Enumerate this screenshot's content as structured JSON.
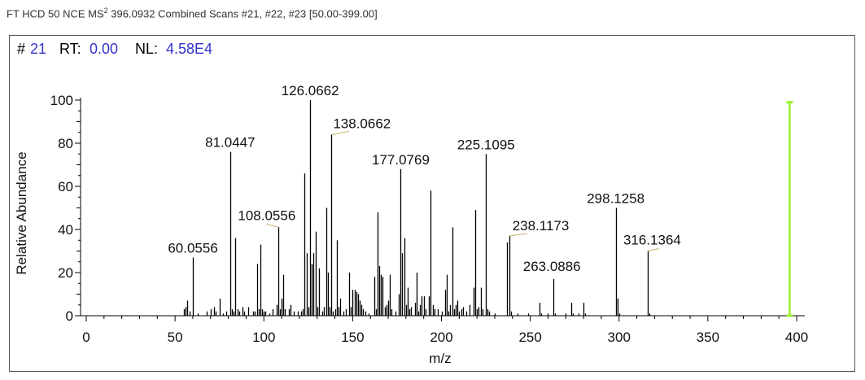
{
  "header": {
    "prefix": "FT HCD 50 NCE MS",
    "ms_order": "2",
    "suffix": " 396.0932 Combined Scans #21, #22, #23 [50.00-399.00]"
  },
  "info": {
    "scan_label": "#",
    "scan_value": "21",
    "rt_label": "RT:",
    "rt_value": "0.00",
    "nl_label": "NL:",
    "nl_value": "4.58E4"
  },
  "colors": {
    "accent_value": "#3333cc",
    "precursor_marker": "#99ee33",
    "peak": "#000000",
    "label_connector": "#c8b070"
  },
  "chart_data": {
    "type": "bar",
    "xlabel": "m/z",
    "ylabel": "Relative Abundance",
    "xlim": [
      -5,
      400
    ],
    "ylim": [
      0,
      100
    ],
    "x_ticks": [
      0,
      50,
      100,
      150,
      200,
      250,
      300,
      350,
      400
    ],
    "y_ticks": [
      0,
      20,
      40,
      60,
      80,
      100
    ],
    "precursor_marker": {
      "x": 396.0932,
      "y": 99
    },
    "peaks": [
      [
        55,
        3
      ],
      [
        56,
        4
      ],
      [
        57,
        7
      ],
      [
        58,
        2
      ],
      [
        60.0556,
        27
      ],
      [
        63,
        1
      ],
      [
        68,
        2
      ],
      [
        70,
        3
      ],
      [
        72,
        4
      ],
      [
        73,
        2
      ],
      [
        75,
        8
      ],
      [
        77,
        1
      ],
      [
        79,
        2
      ],
      [
        81.0447,
        76
      ],
      [
        82,
        3
      ],
      [
        83,
        2
      ],
      [
        84,
        36
      ],
      [
        85,
        3
      ],
      [
        86,
        2
      ],
      [
        88,
        4
      ],
      [
        89,
        2
      ],
      [
        91,
        4
      ],
      [
        94,
        2
      ],
      [
        95,
        2
      ],
      [
        96,
        24
      ],
      [
        97,
        3
      ],
      [
        98,
        33
      ],
      [
        99,
        3
      ],
      [
        100,
        2
      ],
      [
        101,
        2
      ],
      [
        103,
        1
      ],
      [
        105,
        3
      ],
      [
        107,
        5
      ],
      [
        108.0556,
        41
      ],
      [
        109,
        3
      ],
      [
        110,
        8
      ],
      [
        111,
        19
      ],
      [
        112,
        3
      ],
      [
        114,
        3
      ],
      [
        115,
        5
      ],
      [
        117,
        2
      ],
      [
        119,
        2
      ],
      [
        121,
        2
      ],
      [
        122,
        3
      ],
      [
        123,
        66
      ],
      [
        124,
        29
      ],
      [
        125,
        4
      ],
      [
        126.0662,
        100
      ],
      [
        127,
        24
      ],
      [
        128,
        29
      ],
      [
        129,
        39
      ],
      [
        130,
        4
      ],
      [
        131,
        22
      ],
      [
        133,
        2
      ],
      [
        134,
        4
      ],
      [
        135,
        50
      ],
      [
        136,
        20
      ],
      [
        137,
        4
      ],
      [
        138.0662,
        84
      ],
      [
        139,
        2
      ],
      [
        140,
        3
      ],
      [
        141,
        35
      ],
      [
        142,
        4
      ],
      [
        143,
        8
      ],
      [
        145,
        2
      ],
      [
        146,
        3
      ],
      [
        148,
        20
      ],
      [
        149,
        4
      ],
      [
        150,
        12
      ],
      [
        151,
        12
      ],
      [
        152,
        11
      ],
      [
        153,
        10
      ],
      [
        154,
        7
      ],
      [
        155,
        5
      ],
      [
        156,
        3
      ],
      [
        157,
        2
      ],
      [
        159,
        1
      ],
      [
        162,
        18
      ],
      [
        163,
        3
      ],
      [
        164,
        48
      ],
      [
        165,
        23
      ],
      [
        166,
        19
      ],
      [
        167,
        18
      ],
      [
        168,
        4
      ],
      [
        169,
        5
      ],
      [
        170,
        7
      ],
      [
        171,
        19
      ],
      [
        172,
        3
      ],
      [
        174,
        2
      ],
      [
        176,
        10
      ],
      [
        177.0769,
        68
      ],
      [
        178,
        29
      ],
      [
        179,
        36
      ],
      [
        180,
        5
      ],
      [
        181,
        13
      ],
      [
        182,
        3
      ],
      [
        183,
        4
      ],
      [
        185,
        6
      ],
      [
        186,
        20
      ],
      [
        187,
        2
      ],
      [
        188,
        5
      ],
      [
        189,
        9
      ],
      [
        190,
        9
      ],
      [
        191,
        3
      ],
      [
        193,
        9
      ],
      [
        194,
        58
      ],
      [
        195,
        5
      ],
      [
        196,
        3
      ],
      [
        198,
        3
      ],
      [
        200,
        2
      ],
      [
        202,
        12
      ],
      [
        203,
        19
      ],
      [
        204,
        2
      ],
      [
        205,
        5
      ],
      [
        206,
        41
      ],
      [
        207,
        3
      ],
      [
        208,
        5
      ],
      [
        209,
        7
      ],
      [
        210,
        2
      ],
      [
        211,
        3
      ],
      [
        212,
        4
      ],
      [
        214,
        2
      ],
      [
        216,
        5
      ],
      [
        218,
        13
      ],
      [
        219,
        49
      ],
      [
        220,
        3
      ],
      [
        221,
        4
      ],
      [
        222,
        13
      ],
      [
        223,
        3
      ],
      [
        225.1095,
        75
      ],
      [
        226,
        3
      ],
      [
        227,
        2
      ],
      [
        230,
        1
      ],
      [
        237,
        34
      ],
      [
        238.1173,
        37
      ],
      [
        239,
        2
      ],
      [
        243,
        1
      ],
      [
        249,
        1
      ],
      [
        255,
        6
      ],
      [
        256,
        1
      ],
      [
        260,
        1
      ],
      [
        263.0886,
        17
      ],
      [
        264,
        1
      ],
      [
        270,
        1
      ],
      [
        273,
        6
      ],
      [
        274,
        1
      ],
      [
        277,
        1
      ],
      [
        280,
        6
      ],
      [
        281,
        1
      ],
      [
        298.1258,
        50
      ],
      [
        299,
        8
      ],
      [
        300,
        1
      ],
      [
        316.1364,
        30
      ],
      [
        317,
        1
      ]
    ],
    "labels": [
      {
        "text": "60.0556",
        "mz": 60.0556,
        "y": 27
      },
      {
        "text": "81.0447",
        "mz": 81.0447,
        "y": 76
      },
      {
        "text": "108.0556",
        "mz": 108.0556,
        "y": 41
      },
      {
        "text": "126.0662",
        "mz": 126.0662,
        "y": 100
      },
      {
        "text": "138.0662",
        "mz": 138.0662,
        "y": 84
      },
      {
        "text": "177.0769",
        "mz": 177.0769,
        "y": 68
      },
      {
        "text": "225.1095",
        "mz": 225.1095,
        "y": 75
      },
      {
        "text": "238.1173",
        "mz": 238.1173,
        "y": 37
      },
      {
        "text": "263.0886",
        "mz": 263.0886,
        "y": 17
      },
      {
        "text": "298.1258",
        "mz": 298.1258,
        "y": 50
      },
      {
        "text": "316.1364",
        "mz": 316.1364,
        "y": 30
      }
    ]
  }
}
